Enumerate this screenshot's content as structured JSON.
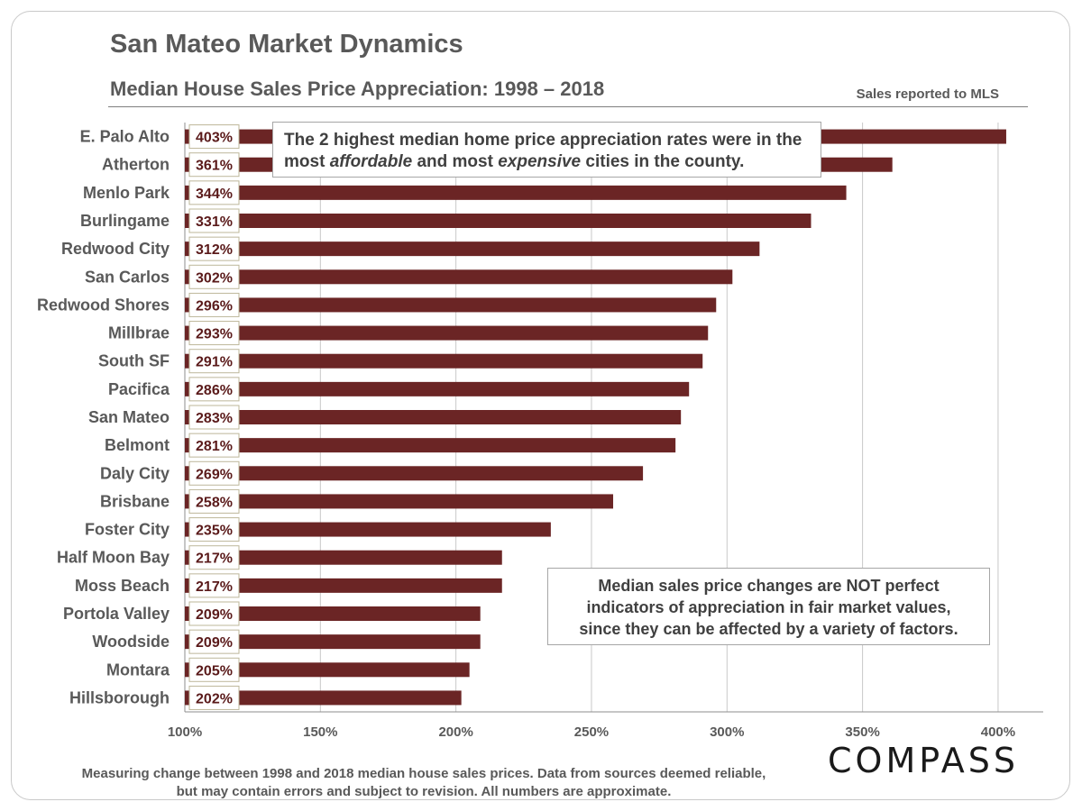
{
  "header": {
    "title": "San Mateo Market Dynamics",
    "subtitle": "Median House Sales Price Appreciation: 1998 – 2018",
    "source_note": "Sales reported to MLS"
  },
  "annotations": {
    "top_text_before_1": "The 2 highest median home price appreciation rates were in the most ",
    "top_em_1": "affordable",
    "top_text_mid": " and most ",
    "top_em_2": "expensive",
    "top_text_after": " cities in the county.",
    "bottom_line_1": "Median sales price changes are NOT perfect",
    "bottom_line_2": "indicators of appreciation in fair market values,",
    "bottom_line_3": "since they can be affected by a variety of factors."
  },
  "footer": {
    "line_1": "Measuring change between 1998 and 2018 median house sales prices. Data from sources  deemed reliable,",
    "line_2": "but may contain errors and subject to revision. All numbers are approximate."
  },
  "logo": {
    "text": "COMPASS"
  },
  "colors": {
    "bar": "#6b2525",
    "grid": "#c8c8c8",
    "axis_text": "#595959",
    "label_text": "#5a1a1a"
  },
  "chart_data": {
    "type": "bar",
    "orientation": "horizontal",
    "categories": [
      "E. Palo Alto",
      "Atherton",
      "Menlo Park",
      "Burlingame",
      "Redwood City",
      "San Carlos",
      "Redwood Shores",
      "Millbrae",
      "South SF",
      "Pacifica",
      "San Mateo",
      "Belmont",
      "Daly City",
      "Brisbane",
      "Foster City",
      "Half Moon Bay",
      "Moss Beach",
      "Portola Valley",
      "Woodside",
      "Montara",
      "Hillsborough"
    ],
    "values": [
      403,
      361,
      344,
      331,
      312,
      302,
      296,
      293,
      291,
      286,
      283,
      281,
      269,
      258,
      235,
      217,
      217,
      209,
      209,
      205,
      202
    ],
    "data_labels": [
      "403%",
      "361%",
      "344%",
      "331%",
      "312%",
      "302%",
      "296%",
      "293%",
      "291%",
      "286%",
      "283%",
      "281%",
      "269%",
      "258%",
      "235%",
      "217%",
      "217%",
      "209%",
      "209%",
      "205%",
      "202%"
    ],
    "xlim": [
      100,
      410
    ],
    "x_ticks": [
      100,
      150,
      200,
      250,
      300,
      350,
      400
    ],
    "x_tick_labels": [
      "100%",
      "150%",
      "200%",
      "250%",
      "300%",
      "350%",
      "400%"
    ],
    "grid": true
  }
}
